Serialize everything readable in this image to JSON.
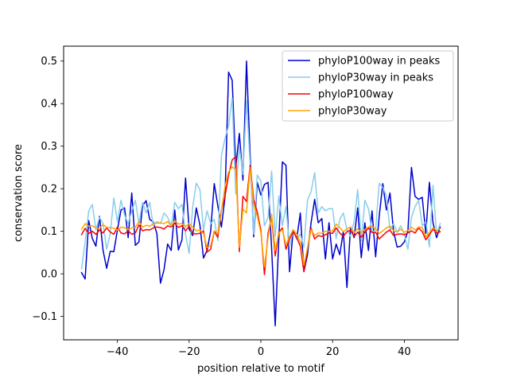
{
  "chart_data": {
    "type": "line",
    "title": "",
    "xlabel": "position relative to motif",
    "ylabel": "conservation score",
    "xlim": [
      -55,
      55
    ],
    "ylim": [
      -0.155,
      0.535
    ],
    "xticks": [
      -40,
      -20,
      0,
      20,
      40
    ],
    "yticks": [
      -0.1,
      0.0,
      0.1,
      0.2,
      0.3,
      0.4,
      0.5
    ],
    "xtick_labels": [
      "−40",
      "−20",
      "0",
      "20",
      "40"
    ],
    "ytick_labels": [
      "−0.1",
      "0.0",
      "0.1",
      "0.2",
      "0.3",
      "0.4",
      "0.5"
    ],
    "grid": false,
    "legend_position": "top-right",
    "x": [
      -50,
      -49,
      -48,
      -47,
      -46,
      -45,
      -44,
      -43,
      -42,
      -41,
      -40,
      -39,
      -38,
      -37,
      -36,
      -35,
      -34,
      -33,
      -32,
      -31,
      -30,
      -29,
      -28,
      -27,
      -26,
      -25,
      -24,
      -23,
      -22,
      -21,
      -20,
      -19,
      -18,
      -17,
      -16,
      -15,
      -14,
      -13,
      -12,
      -11,
      -10,
      -9,
      -8,
      -7,
      -6,
      -5,
      -4,
      -3,
      -2,
      -1,
      0,
      1,
      2,
      3,
      4,
      5,
      6,
      7,
      8,
      9,
      10,
      11,
      12,
      13,
      14,
      15,
      16,
      17,
      18,
      19,
      20,
      21,
      22,
      23,
      24,
      25,
      26,
      27,
      28,
      29,
      30,
      31,
      32,
      33,
      34,
      35,
      36,
      37,
      38,
      39,
      40,
      41,
      42,
      43,
      44,
      45,
      46,
      47,
      48,
      49,
      50
    ],
    "series": [
      {
        "name": "phyloP100way in peaks",
        "color": "#0000cd",
        "values": [
          0.003,
          -0.012,
          0.125,
          0.083,
          0.065,
          0.135,
          0.055,
          0.013,
          0.053,
          0.052,
          0.103,
          0.15,
          0.155,
          0.085,
          0.19,
          0.067,
          0.075,
          0.16,
          0.172,
          0.128,
          0.122,
          0.095,
          -0.022,
          0.01,
          0.07,
          0.055,
          0.15,
          0.056,
          0.08,
          0.225,
          0.105,
          0.09,
          0.155,
          0.115,
          0.037,
          0.055,
          0.1,
          0.212,
          0.16,
          0.11,
          0.18,
          0.474,
          0.455,
          0.25,
          0.33,
          0.22,
          0.5,
          0.28,
          0.087,
          0.215,
          0.185,
          0.21,
          0.215,
          0.06,
          -0.122,
          0.08,
          0.263,
          0.255,
          0.005,
          0.102,
          0.082,
          0.143,
          0.005,
          0.045,
          0.12,
          0.175,
          0.12,
          0.13,
          0.035,
          0.12,
          0.035,
          0.07,
          0.045,
          0.1,
          -0.032,
          0.11,
          0.085,
          0.155,
          0.038,
          0.12,
          0.055,
          0.148,
          0.04,
          0.135,
          0.212,
          0.15,
          0.19,
          0.1,
          0.063,
          0.065,
          0.075,
          0.1,
          0.25,
          0.182,
          0.175,
          0.18,
          0.095,
          0.215,
          0.12,
          0.085,
          0.11
        ]
      },
      {
        "name": "phyloP30way in peaks",
        "color": "#87ceeb",
        "values": [
          0.012,
          0.075,
          0.148,
          0.163,
          0.103,
          0.133,
          0.118,
          0.058,
          0.095,
          0.178,
          0.123,
          0.173,
          0.138,
          0.118,
          0.148,
          0.173,
          0.118,
          0.168,
          0.143,
          0.168,
          0.113,
          0.123,
          0.118,
          0.143,
          0.133,
          0.113,
          0.168,
          0.153,
          0.163,
          0.093,
          0.048,
          0.158,
          0.213,
          0.198,
          0.103,
          0.148,
          0.118,
          0.128,
          0.078,
          0.278,
          0.318,
          0.348,
          0.413,
          0.188,
          0.298,
          0.233,
          0.408,
          0.258,
          0.093,
          0.232,
          0.218,
          0.113,
          0.133,
          0.242,
          0.088,
          0.183,
          0.113,
          0.158,
          0.063,
          0.103,
          0.083,
          0.093,
          0.063,
          0.173,
          0.193,
          0.238,
          0.143,
          0.158,
          0.148,
          0.153,
          0.153,
          0.083,
          0.128,
          0.143,
          0.103,
          0.088,
          0.123,
          0.198,
          0.078,
          0.173,
          0.153,
          0.098,
          0.103,
          0.213,
          0.203,
          0.183,
          0.103,
          0.118,
          0.098,
          0.113,
          0.093,
          0.058,
          0.133,
          0.158,
          0.173,
          0.113,
          0.123,
          0.063,
          0.208,
          0.093,
          0.118
        ]
      },
      {
        "name": "phyloP100way",
        "color": "#ff0000",
        "values": [
          0.092,
          0.107,
          0.095,
          0.1,
          0.093,
          0.103,
          0.096,
          0.108,
          0.098,
          0.093,
          0.11,
          0.096,
          0.094,
          0.101,
          0.093,
          0.096,
          0.115,
          0.101,
          0.104,
          0.103,
          0.108,
          0.11,
          0.109,
          0.105,
          0.113,
          0.11,
          0.119,
          0.109,
          0.113,
          0.101,
          0.112,
          0.094,
          0.094,
          0.095,
          0.101,
          0.051,
          0.058,
          0.1,
          0.086,
          0.15,
          0.182,
          0.232,
          0.268,
          0.275,
          0.052,
          0.182,
          0.17,
          0.255,
          0.175,
          0.145,
          0.103,
          -0.002,
          0.095,
          0.135,
          0.042,
          0.098,
          0.108,
          0.058,
          0.082,
          0.1,
          0.085,
          0.065,
          0.005,
          0.06,
          0.108,
          0.082,
          0.09,
          0.088,
          0.092,
          0.096,
          0.095,
          0.108,
          0.096,
          0.088,
          0.099,
          0.103,
          0.088,
          0.098,
          0.086,
          0.097,
          0.108,
          0.097,
          0.098,
          0.082,
          0.09,
          0.098,
          0.103,
          0.09,
          0.093,
          0.094,
          0.092,
          0.096,
          0.101,
          0.096,
          0.108,
          0.099,
          0.08,
          0.092,
          0.105,
          0.096,
          0.099
        ]
      },
      {
        "name": "phyloP30way",
        "color": "#ffa500",
        "values": [
          0.105,
          0.118,
          0.112,
          0.113,
          0.108,
          0.106,
          0.116,
          0.109,
          0.109,
          0.107,
          0.103,
          0.11,
          0.108,
          0.104,
          0.108,
          0.109,
          0.123,
          0.11,
          0.114,
          0.112,
          0.118,
          0.119,
          0.12,
          0.118,
          0.123,
          0.112,
          0.125,
          0.117,
          0.118,
          0.111,
          0.118,
          0.11,
          0.101,
          0.103,
          0.095,
          0.062,
          0.066,
          0.101,
          0.095,
          0.148,
          0.205,
          0.24,
          0.251,
          0.245,
          0.062,
          0.152,
          0.143,
          0.25,
          0.16,
          0.136,
          0.096,
          0.016,
          0.084,
          0.141,
          0.055,
          0.096,
          0.104,
          0.068,
          0.087,
          0.104,
          0.093,
          0.075,
          0.021,
          0.06,
          0.104,
          0.09,
          0.096,
          0.095,
          0.1,
          0.1,
          0.101,
          0.117,
          0.109,
          0.099,
          0.106,
          0.11,
          0.096,
          0.106,
          0.097,
          0.104,
          0.11,
          0.111,
          0.106,
          0.095,
          0.101,
          0.108,
          0.112,
          0.101,
          0.098,
          0.105,
          0.098,
          0.102,
          0.11,
          0.103,
          0.11,
          0.109,
          0.087,
          0.097,
          0.108,
          0.102,
          0.106
        ]
      }
    ]
  }
}
